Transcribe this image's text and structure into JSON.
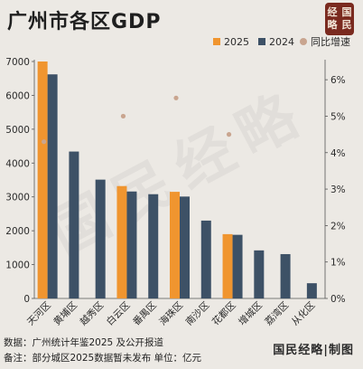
{
  "header": {
    "title": "广州市各区GDP",
    "logo_chars": [
      "经",
      "国",
      "略",
      "民"
    ]
  },
  "legend": {
    "items": [
      {
        "label": "2025",
        "color": "#f0952f",
        "shape": "square"
      },
      {
        "label": "2024",
        "color": "#3d5166",
        "shape": "square"
      },
      {
        "label": "同比增速",
        "color": "#c9a58f",
        "shape": "circle"
      }
    ]
  },
  "footer": {
    "source": "数据：广州统计年鉴2025 及公开报道",
    "note": "备注：部分城区2025数据暂未发布 单位：亿元",
    "brand": "国民经略|制图"
  },
  "watermark": "国民经略",
  "chart_data": {
    "type": "bar",
    "categories": [
      "天河区",
      "黄埔区",
      "越秀区",
      "白云区",
      "番禺区",
      "海珠区",
      "南沙区",
      "花都区",
      "增城区",
      "荔湾区",
      "从化区"
    ],
    "series": [
      {
        "name": "2025",
        "values": [
          7000,
          null,
          null,
          3320,
          null,
          3150,
          null,
          1900,
          null,
          null,
          null
        ],
        "color": "#f0952f"
      },
      {
        "name": "2024",
        "values": [
          6620,
          4340,
          3510,
          3160,
          3080,
          3010,
          2300,
          1880,
          1420,
          1310,
          450
        ],
        "color": "#3d5166"
      }
    ],
    "growth": {
      "name": "同比增速",
      "values": [
        4.3,
        null,
        null,
        5.0,
        null,
        5.5,
        null,
        4.5,
        null,
        null,
        null
      ],
      "color": "#c9a58f"
    },
    "ylim": [
      0,
      7000
    ],
    "yticks": [
      0,
      1000,
      2000,
      3000,
      4000,
      5000,
      6000,
      7000
    ],
    "y2lim": [
      0,
      6.5
    ],
    "y2ticks": [
      "0%",
      "1%",
      "2%",
      "3%",
      "4%",
      "5%",
      "6%"
    ],
    "y2tick_values": [
      0,
      1,
      2,
      3,
      4,
      5,
      6
    ],
    "grid": false
  }
}
